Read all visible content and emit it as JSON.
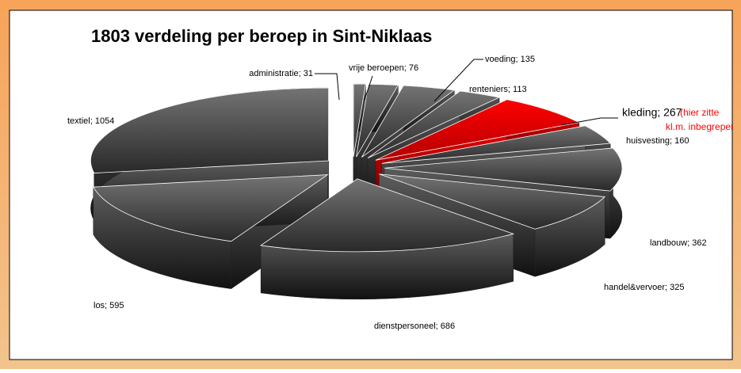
{
  "chart_data": {
    "type": "pie",
    "title": "1803 verdeling per beroep in Sint-Niklaas",
    "values": [
      31,
      76,
      135,
      113,
      267,
      160,
      362,
      325,
      686,
      595,
      1054
    ],
    "value_labels": [
      "administratie; 31",
      "vrije beroepen; 76",
      "voeding; 135",
      "renteniers; 113",
      "kleding; 267",
      "huisvesting; 160",
      "landbouw; 362",
      "handel&vervoer; 325",
      "dienstpersoneel; 686",
      "los; 595",
      "textiel; 1054"
    ],
    "colors": [
      "#3a3a3a",
      "#3a3a3a",
      "#3a3a3a",
      "#3a3a3a",
      "#ff0000",
      "#3a3a3a",
      "#3a3a3a",
      "#3a3a3a",
      "#3a3a3a",
      "#3a3a3a",
      "#3a3a3a"
    ],
    "annotations": [
      "(hier zitte",
      "kl.m. inbegrepen)"
    ]
  }
}
